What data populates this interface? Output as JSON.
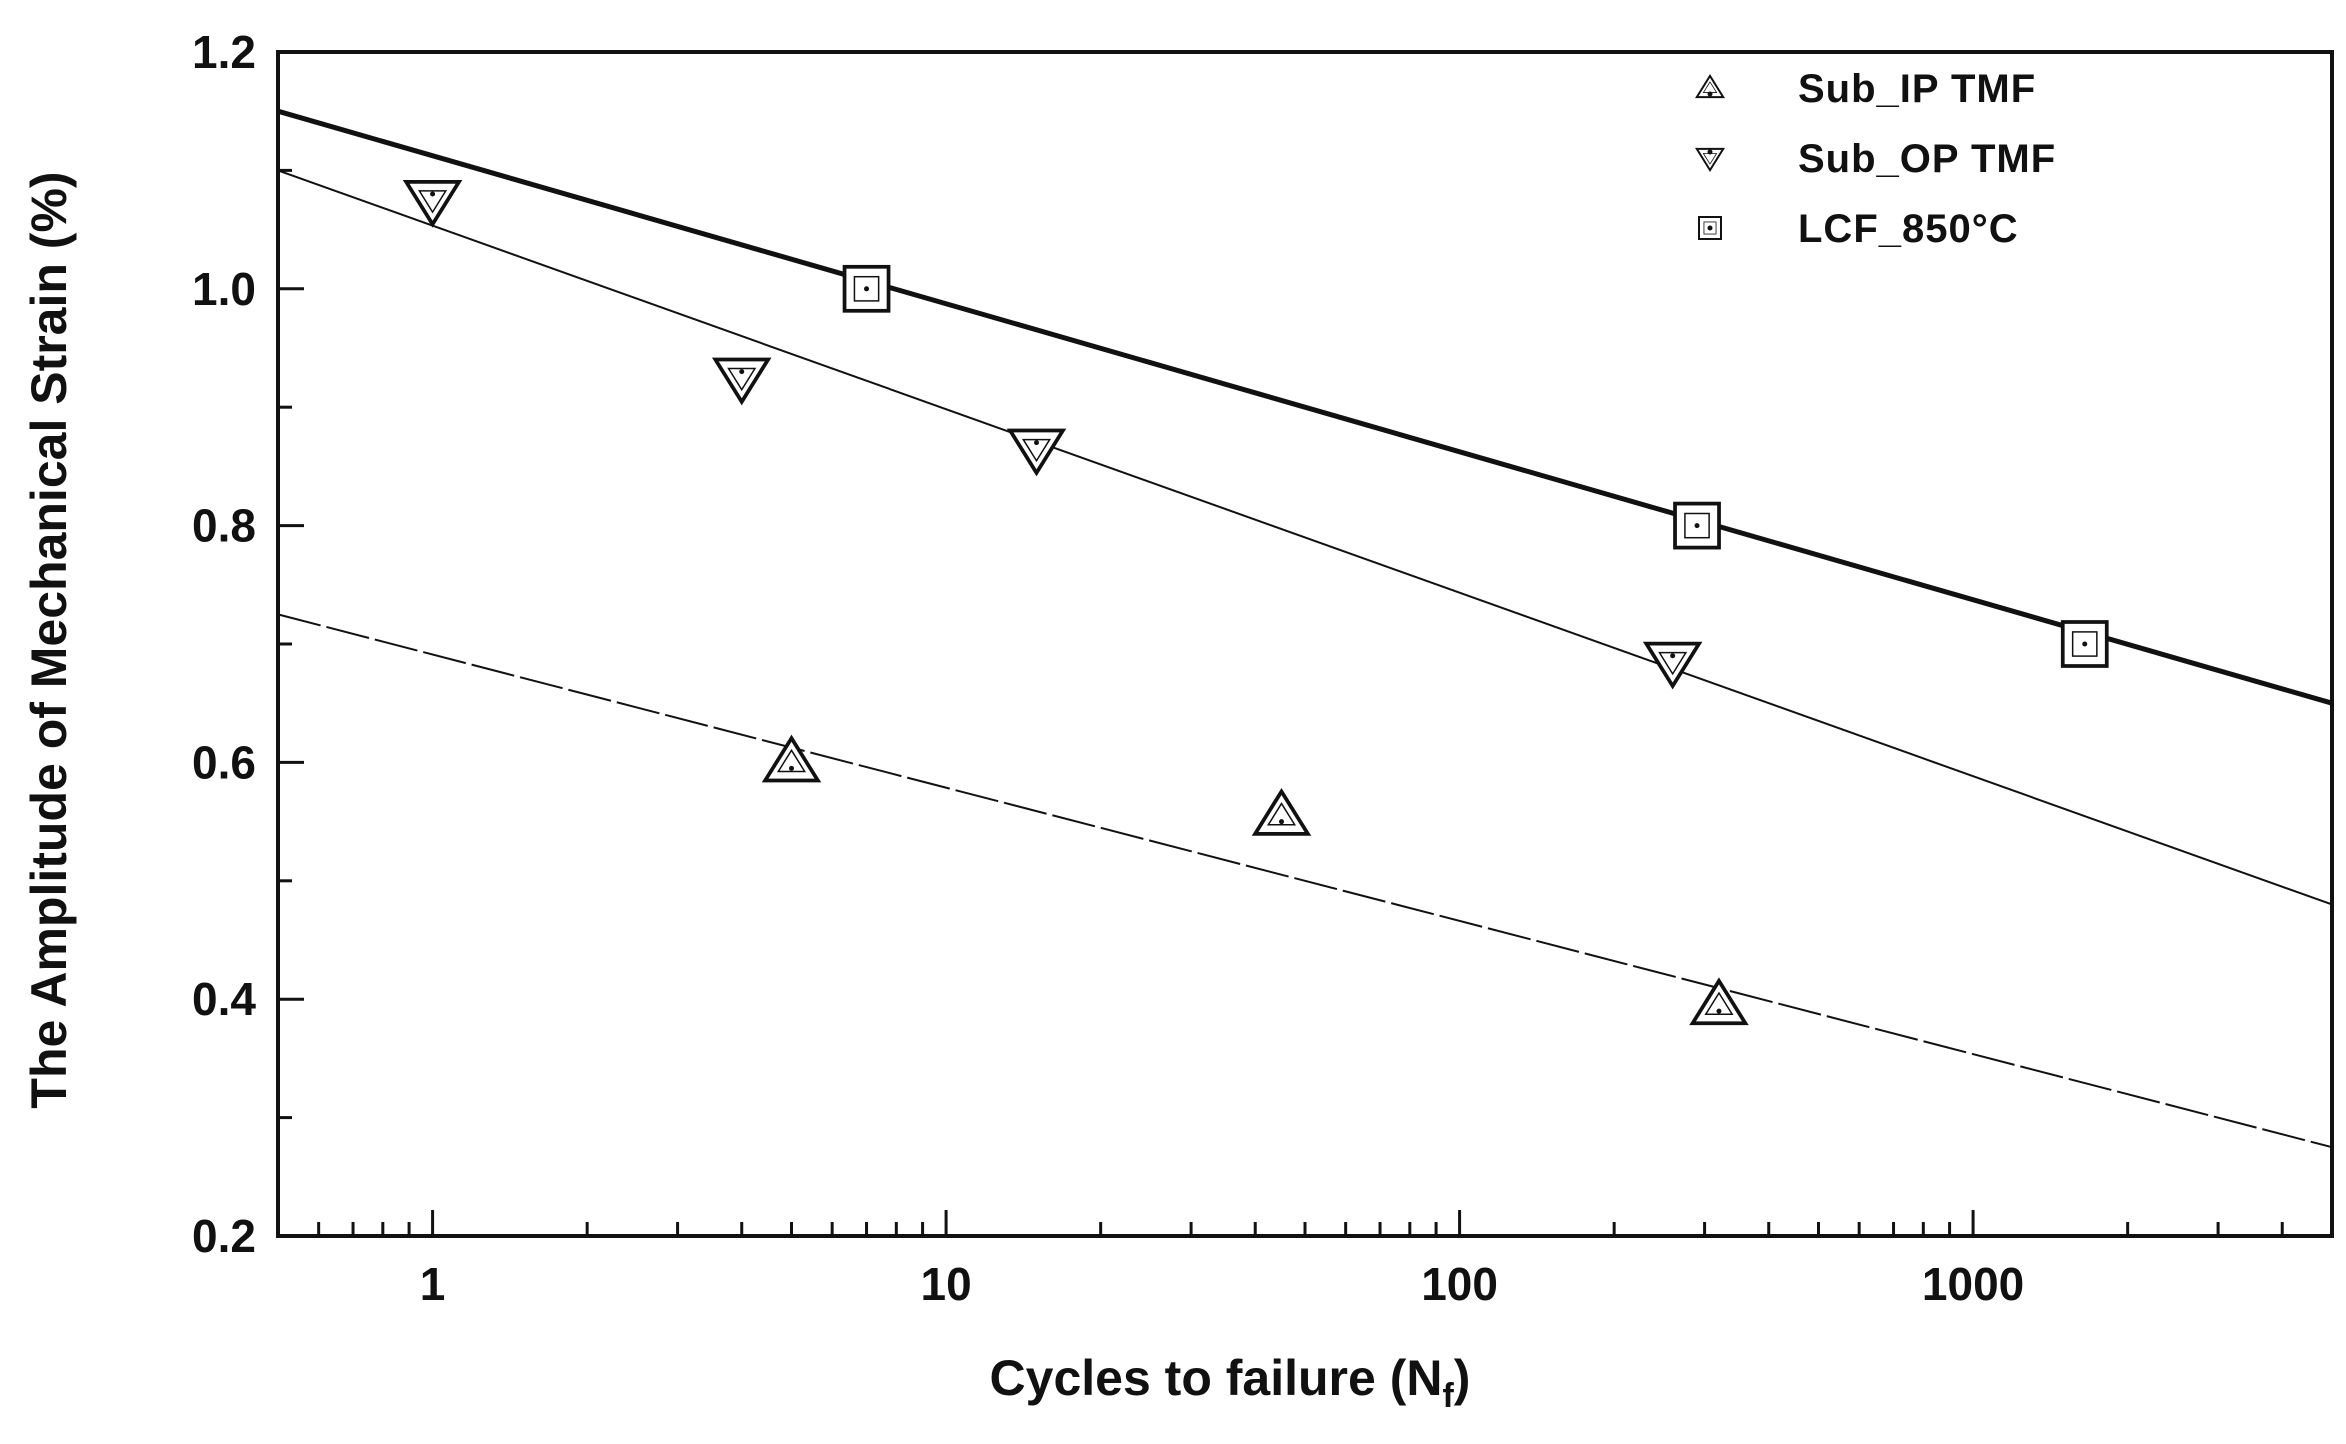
{
  "chart_data": {
    "type": "scatter",
    "xscale": "log",
    "xlim": [
      0.5,
      5000
    ],
    "ylim": [
      0.2,
      1.2
    ],
    "xlabel": "Cycles to failure (N",
    "xlabel_sub": "f",
    "xlabel_close": ")",
    "ylabel": "The Amplitude of Mechanical Strain (%)",
    "x_ticks": [
      1,
      10,
      100,
      1000
    ],
    "x_tick_labels": [
      "1",
      "10",
      "100",
      "1000"
    ],
    "y_ticks": [
      0.2,
      0.4,
      0.6,
      0.8,
      1.0,
      1.2
    ],
    "y_tick_labels": [
      "0.2",
      "0.4",
      "0.6",
      "0.8",
      "1.0",
      "1.2"
    ],
    "legend_position": "top-right",
    "series": [
      {
        "name": "Sub_IP TMF",
        "marker": "triangle-up",
        "line_style": "dashed",
        "points": [
          [
            5,
            0.6
          ],
          [
            45,
            0.555
          ],
          [
            320,
            0.395
          ]
        ],
        "fit_line": [
          [
            0.5,
            0.725
          ],
          [
            5000,
            0.275
          ]
        ]
      },
      {
        "name": "Sub_OP TMF",
        "marker": "triangle-down",
        "line_style": "thin",
        "points": [
          [
            1,
            1.075
          ],
          [
            4,
            0.925
          ],
          [
            15,
            0.865
          ],
          [
            260,
            0.685
          ]
        ],
        "fit_line": [
          [
            0.5,
            1.1
          ],
          [
            5000,
            0.48
          ]
        ]
      },
      {
        "name": "LCF_850°C",
        "marker": "square",
        "line_style": "thick",
        "points": [
          [
            7,
            1.0
          ],
          [
            290,
            0.8
          ],
          [
            1650,
            0.7
          ]
        ],
        "fit_line": [
          [
            0.5,
            1.15
          ],
          [
            5000,
            0.65
          ]
        ]
      }
    ]
  }
}
